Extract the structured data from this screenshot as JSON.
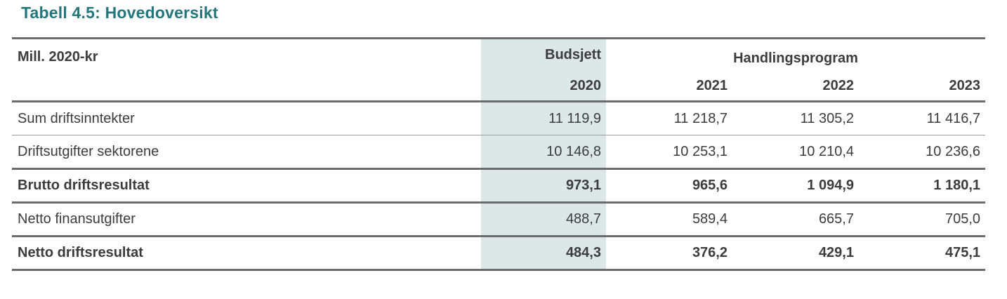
{
  "title": "Tabell 4.5: Hovedoversikt",
  "table": {
    "unit_label": "Mill. 2020-kr",
    "budget_col": {
      "line1": "Budsjett",
      "line2": "2020"
    },
    "program_header": "Handlingsprogram",
    "years": [
      "2021",
      "2022",
      "2023"
    ],
    "rows": [
      {
        "label": "Sum driftsinntekter",
        "bold": false,
        "values": [
          "11 119,9",
          "11 218,7",
          "11 305,2",
          "11 416,7"
        ]
      },
      {
        "label": "Driftsutgifter sektorene",
        "bold": false,
        "values": [
          "10 146,8",
          "10 253,1",
          "10 210,4",
          "10 236,6"
        ]
      },
      {
        "label": "Brutto driftsresultat",
        "bold": true,
        "values": [
          "973,1",
          "965,6",
          "1 094,9",
          "1 180,1"
        ]
      },
      {
        "label": "Netto finansutgifter",
        "bold": false,
        "values": [
          "488,7",
          "589,4",
          "665,7",
          "705,0"
        ]
      },
      {
        "label": "Netto driftsresultat",
        "bold": true,
        "values": [
          "484,3",
          "376,2",
          "429,1",
          "475,1"
        ]
      }
    ]
  },
  "colors": {
    "title_teal": "#23767b",
    "highlight_column": "#dce8e8",
    "border_dark": "#6b6b6b",
    "border_thin": "#9d9d9d",
    "text": "#3c3c3c"
  }
}
